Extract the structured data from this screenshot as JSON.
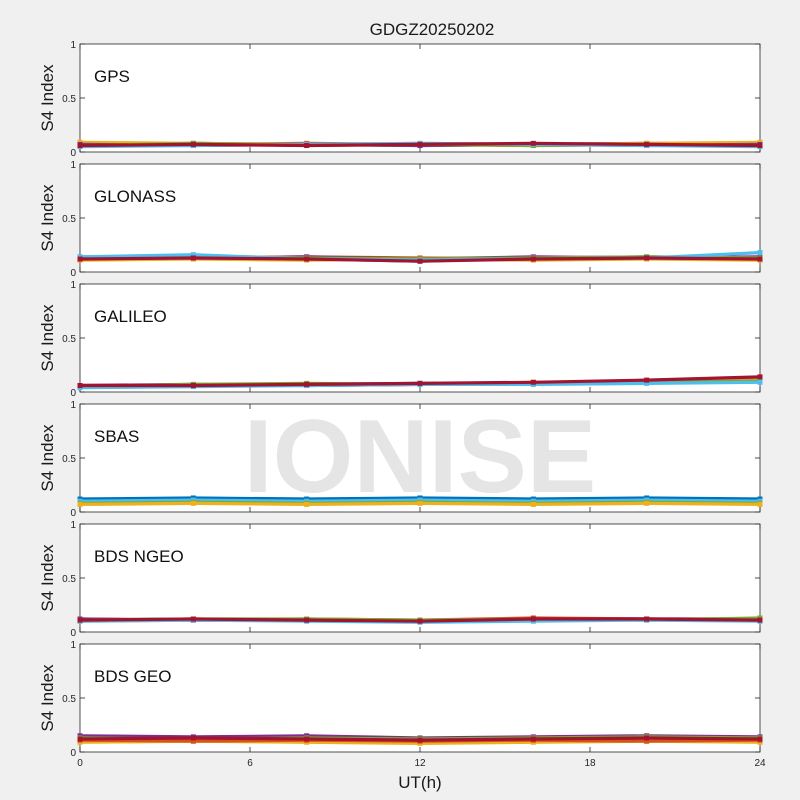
{
  "figure": {
    "title": "GDGZ20250202",
    "xlabel": "UT(h)",
    "watermark": "IONISE"
  },
  "chart_data": [
    {
      "type": "scatter",
      "title": "GPS",
      "ylabel": "S4 Index",
      "xlim": [
        0,
        24
      ],
      "ylim": [
        0,
        1
      ],
      "xticks": [
        0,
        6,
        12,
        18,
        24
      ],
      "yticks": [
        0,
        0.5,
        1
      ],
      "series": [
        {
          "color": "#0072BD",
          "x": [
            0,
            4,
            8,
            12,
            16,
            20,
            24
          ],
          "y": [
            0.06,
            0.08,
            0.07,
            0.06,
            0.07,
            0.08,
            0.07
          ]
        },
        {
          "color": "#D95319",
          "x": [
            0,
            4,
            8,
            12,
            16,
            20,
            24
          ],
          "y": [
            0.08,
            0.07,
            0.08,
            0.07,
            0.06,
            0.07,
            0.08
          ]
        },
        {
          "color": "#EDB120",
          "x": [
            0,
            4,
            8,
            12,
            16,
            20,
            24
          ],
          "y": [
            0.09,
            0.08,
            0.07,
            0.08,
            0.07,
            0.08,
            0.09
          ]
        },
        {
          "color": "#7E2F8E",
          "x": [
            0,
            4,
            8,
            12,
            16,
            20,
            24
          ],
          "y": [
            0.07,
            0.06,
            0.07,
            0.06,
            0.07,
            0.06,
            0.07
          ]
        },
        {
          "color": "#77AC30",
          "x": [
            0,
            4,
            8,
            12,
            16,
            20,
            24
          ],
          "y": [
            0.06,
            0.08,
            0.06,
            0.07,
            0.06,
            0.07,
            0.06
          ]
        },
        {
          "color": "#4DBEEE",
          "x": [
            0,
            4,
            8,
            12,
            16,
            20,
            24
          ],
          "y": [
            0.05,
            0.06,
            0.07,
            0.08,
            0.07,
            0.06,
            0.05
          ]
        },
        {
          "color": "#A2142F",
          "x": [
            0,
            4,
            8,
            12,
            16,
            20,
            24
          ],
          "y": [
            0.06,
            0.07,
            0.06,
            0.07,
            0.08,
            0.07,
            0.06
          ]
        }
      ]
    },
    {
      "type": "scatter",
      "title": "GLONASS",
      "ylabel": "S4 Index",
      "xlim": [
        0,
        24
      ],
      "ylim": [
        0,
        1
      ],
      "xticks": [
        0,
        6,
        12,
        18,
        24
      ],
      "yticks": [
        0,
        0.5,
        1
      ],
      "series": [
        {
          "color": "#0072BD",
          "x": [
            0,
            4,
            8,
            12,
            16,
            20,
            24
          ],
          "y": [
            0.13,
            0.14,
            0.12,
            0.1,
            0.13,
            0.14,
            0.13
          ]
        },
        {
          "color": "#D95319",
          "x": [
            0,
            4,
            8,
            12,
            16,
            20,
            24
          ],
          "y": [
            0.12,
            0.13,
            0.14,
            0.13,
            0.12,
            0.13,
            0.12
          ]
        },
        {
          "color": "#EDB120",
          "x": [
            0,
            4,
            8,
            12,
            16,
            20,
            24
          ],
          "y": [
            0.11,
            0.12,
            0.11,
            0.12,
            0.11,
            0.12,
            0.11
          ]
        },
        {
          "color": "#7E2F8E",
          "x": [
            0,
            4,
            8,
            12,
            16,
            20,
            24
          ],
          "y": [
            0.14,
            0.13,
            0.14,
            0.12,
            0.14,
            0.13,
            0.14
          ]
        },
        {
          "color": "#77AC30",
          "x": [
            0,
            4,
            8,
            12,
            16,
            20,
            24
          ],
          "y": [
            0.13,
            0.15,
            0.13,
            0.12,
            0.13,
            0.14,
            0.13
          ]
        },
        {
          "color": "#4DBEEE",
          "x": [
            0,
            4,
            8,
            12,
            16,
            20,
            24
          ],
          "y": [
            0.14,
            0.16,
            0.12,
            0.11,
            0.12,
            0.13,
            0.18
          ]
        },
        {
          "color": "#A2142F",
          "x": [
            0,
            4,
            8,
            12,
            16,
            20,
            24
          ],
          "y": [
            0.12,
            0.13,
            0.12,
            0.1,
            0.12,
            0.13,
            0.12
          ]
        }
      ]
    },
    {
      "type": "scatter",
      "title": "GALILEO",
      "ylabel": "S4 Index",
      "xlim": [
        0,
        24
      ],
      "ylim": [
        0,
        1
      ],
      "xticks": [
        0,
        6,
        12,
        18,
        24
      ],
      "yticks": [
        0,
        0.5,
        1
      ],
      "series": [
        {
          "color": "#0072BD",
          "x": [
            0,
            4,
            8,
            12,
            16,
            20,
            24
          ],
          "y": [
            0.05,
            0.06,
            0.07,
            0.08,
            0.08,
            0.1,
            0.11
          ]
        },
        {
          "color": "#D95319",
          "x": [
            0,
            4,
            8,
            12,
            16,
            20,
            24
          ],
          "y": [
            0.06,
            0.06,
            0.07,
            0.07,
            0.08,
            0.09,
            0.1
          ]
        },
        {
          "color": "#EDB120",
          "x": [
            0,
            4,
            8,
            12,
            16,
            20,
            24
          ],
          "y": [
            0.05,
            0.06,
            0.06,
            0.07,
            0.09,
            0.1,
            0.11
          ]
        },
        {
          "color": "#7E2F8E",
          "x": [
            0,
            4,
            8,
            12,
            16,
            20,
            24
          ],
          "y": [
            0.06,
            0.07,
            0.06,
            0.07,
            0.08,
            0.09,
            0.1
          ]
        },
        {
          "color": "#77AC30",
          "x": [
            0,
            4,
            8,
            12,
            16,
            20,
            24
          ],
          "y": [
            0.05,
            0.07,
            0.08,
            0.07,
            0.08,
            0.09,
            0.1
          ]
        },
        {
          "color": "#4DBEEE",
          "x": [
            0,
            4,
            8,
            12,
            16,
            20,
            24
          ],
          "y": [
            0.04,
            0.05,
            0.06,
            0.07,
            0.07,
            0.08,
            0.09
          ]
        },
        {
          "color": "#A2142F",
          "x": [
            0,
            4,
            8,
            12,
            16,
            20,
            24
          ],
          "y": [
            0.06,
            0.06,
            0.07,
            0.08,
            0.09,
            0.11,
            0.14
          ]
        }
      ]
    },
    {
      "type": "scatter",
      "title": "SBAS",
      "ylabel": "S4 Index",
      "xlim": [
        0,
        24
      ],
      "ylim": [
        0,
        1
      ],
      "xticks": [
        0,
        6,
        12,
        18,
        24
      ],
      "yticks": [
        0,
        0.5,
        1
      ],
      "series": [
        {
          "color": "#0072BD",
          "x": [
            0,
            4,
            8,
            12,
            16,
            20,
            24
          ],
          "y": [
            0.12,
            0.13,
            0.12,
            0.13,
            0.12,
            0.13,
            0.12
          ]
        },
        {
          "color": "#4DBEEE",
          "x": [
            0,
            4,
            8,
            12,
            16,
            20,
            24
          ],
          "y": [
            0.1,
            0.11,
            0.1,
            0.11,
            0.1,
            0.11,
            0.1
          ]
        },
        {
          "color": "#77AC30",
          "x": [
            0,
            4,
            8,
            12,
            16,
            20,
            24
          ],
          "y": [
            0.08,
            0.09,
            0.08,
            0.09,
            0.08,
            0.09,
            0.08
          ]
        },
        {
          "color": "#EDB120",
          "x": [
            0,
            4,
            8,
            12,
            16,
            20,
            24
          ],
          "y": [
            0.07,
            0.08,
            0.07,
            0.08,
            0.07,
            0.08,
            0.07
          ]
        }
      ]
    },
    {
      "type": "scatter",
      "title": "BDS NGEO",
      "ylabel": "S4 Index",
      "xlim": [
        0,
        24
      ],
      "ylim": [
        0,
        1
      ],
      "xticks": [
        0,
        6,
        12,
        18,
        24
      ],
      "yticks": [
        0,
        0.5,
        1
      ],
      "series": [
        {
          "color": "#0072BD",
          "x": [
            0,
            4,
            8,
            12,
            16,
            20,
            24
          ],
          "y": [
            0.11,
            0.12,
            0.11,
            0.1,
            0.12,
            0.12,
            0.11
          ]
        },
        {
          "color": "#D95319",
          "x": [
            0,
            4,
            8,
            12,
            16,
            20,
            24
          ],
          "y": [
            0.12,
            0.11,
            0.12,
            0.11,
            0.13,
            0.12,
            0.12
          ]
        },
        {
          "color": "#EDB120",
          "x": [
            0,
            4,
            8,
            12,
            16,
            20,
            24
          ],
          "y": [
            0.1,
            0.11,
            0.12,
            0.1,
            0.11,
            0.12,
            0.11
          ]
        },
        {
          "color": "#7E2F8E",
          "x": [
            0,
            4,
            8,
            12,
            16,
            20,
            24
          ],
          "y": [
            0.12,
            0.11,
            0.11,
            0.1,
            0.12,
            0.12,
            0.12
          ]
        },
        {
          "color": "#77AC30",
          "x": [
            0,
            4,
            8,
            12,
            16,
            20,
            24
          ],
          "y": [
            0.11,
            0.12,
            0.12,
            0.11,
            0.12,
            0.11,
            0.13
          ]
        },
        {
          "color": "#4DBEEE",
          "x": [
            0,
            4,
            8,
            12,
            16,
            20,
            24
          ],
          "y": [
            0.1,
            0.11,
            0.1,
            0.09,
            0.1,
            0.11,
            0.1
          ]
        },
        {
          "color": "#A2142F",
          "x": [
            0,
            4,
            8,
            12,
            16,
            20,
            24
          ],
          "y": [
            0.11,
            0.12,
            0.11,
            0.1,
            0.12,
            0.12,
            0.11
          ]
        }
      ]
    },
    {
      "type": "scatter",
      "title": "BDS GEO",
      "ylabel": "S4 Index",
      "xlim": [
        0,
        24
      ],
      "ylim": [
        0,
        1
      ],
      "xticks": [
        0,
        6,
        12,
        18,
        24
      ],
      "yticks": [
        0,
        0.5,
        1
      ],
      "series": [
        {
          "color": "#7E2F8E",
          "x": [
            0,
            4,
            8,
            12,
            16,
            20,
            24
          ],
          "y": [
            0.15,
            0.14,
            0.15,
            0.13,
            0.14,
            0.15,
            0.14
          ]
        },
        {
          "color": "#EDB120",
          "x": [
            0,
            4,
            8,
            12,
            16,
            20,
            24
          ],
          "y": [
            0.09,
            0.1,
            0.09,
            0.08,
            0.09,
            0.1,
            0.09
          ]
        },
        {
          "color": "#77AC30",
          "x": [
            0,
            4,
            8,
            12,
            16,
            20,
            24
          ],
          "y": [
            0.13,
            0.12,
            0.13,
            0.12,
            0.13,
            0.14,
            0.13
          ]
        },
        {
          "color": "#D95319",
          "x": [
            0,
            4,
            8,
            12,
            16,
            20,
            24
          ],
          "y": [
            0.11,
            0.1,
            0.11,
            0.1,
            0.11,
            0.1,
            0.11
          ]
        },
        {
          "color": "#A2142F",
          "x": [
            0,
            4,
            8,
            12,
            16,
            20,
            24
          ],
          "y": [
            0.12,
            0.13,
            0.12,
            0.11,
            0.12,
            0.13,
            0.12
          ]
        }
      ]
    }
  ]
}
